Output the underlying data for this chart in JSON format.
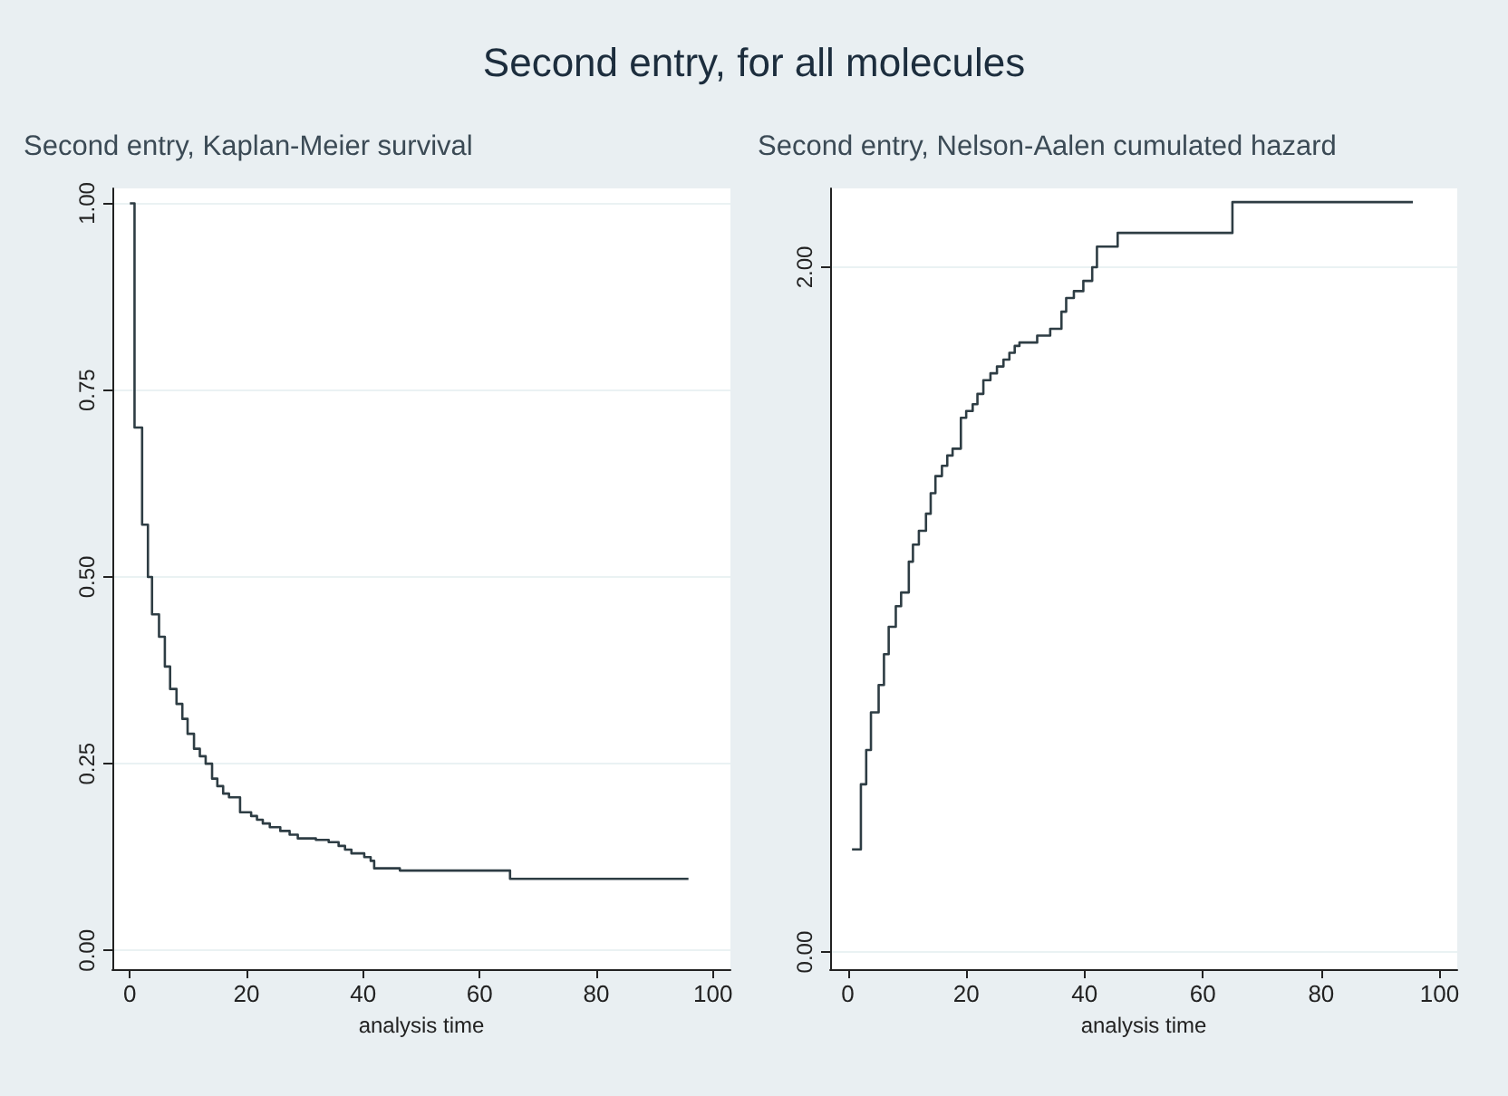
{
  "chart_data": [
    {
      "type": "step",
      "title": "Second entry, for all molecules",
      "subtitle": "Second entry, Kaplan-Meier survival",
      "xlabel": "analysis time",
      "x": [
        0,
        0.8,
        2.1,
        3.1,
        3.8,
        5,
        6,
        6.9,
        8,
        9,
        9.9,
        11,
        12,
        13,
        14.1,
        15,
        16,
        17,
        18.9,
        20.8,
        21.8,
        22.8,
        24,
        25.8,
        27.4,
        28.8,
        31.9,
        34.1,
        35.8,
        36.9,
        38,
        40.2,
        41.3,
        41.9,
        46.3,
        65.2,
        95.8
      ],
      "series": [
        {
          "color": "#2e3d44",
          "values": [
            1.0,
            0.7,
            0.57,
            0.5,
            0.45,
            0.42,
            0.38,
            0.35,
            0.33,
            0.31,
            0.29,
            0.27,
            0.26,
            0.25,
            0.23,
            0.22,
            0.21,
            0.205,
            0.185,
            0.18,
            0.175,
            0.17,
            0.165,
            0.16,
            0.155,
            0.15,
            0.148,
            0.145,
            0.14,
            0.135,
            0.13,
            0.125,
            0.12,
            0.11,
            0.107,
            0.096,
            0.096
          ]
        }
      ],
      "xlim": [
        -3,
        103
      ],
      "xticks": [
        0,
        20,
        40,
        60,
        80,
        100
      ],
      "ylim": [
        -0.025,
        1.02
      ],
      "yticks": [
        {
          "value": 0,
          "label": "0.00"
        },
        {
          "value": 0.25,
          "label": "0.25"
        },
        {
          "value": 0.5,
          "label": "0.50"
        },
        {
          "value": 0.75,
          "label": "0.75"
        },
        {
          "value": 1,
          "label": "1.00"
        }
      ],
      "grid": "y",
      "marker": "none",
      "line_style": "solid"
    },
    {
      "type": "step",
      "subtitle": "Second entry, Nelson-Aalen cumulated hazard",
      "xlabel": "analysis time",
      "x": [
        0.7,
        2.2,
        3.1,
        3.9,
        5.2,
        6.1,
        6.9,
        8.1,
        9,
        10.3,
        11,
        12,
        13.2,
        14,
        14.8,
        15.9,
        16.8,
        17.7,
        19.1,
        20,
        21.1,
        21.9,
        22.9,
        24.1,
        25.2,
        26.3,
        27.3,
        28.2,
        29,
        32,
        34.2,
        36.1,
        36.9,
        38.2,
        39.8,
        41.3,
        42.1,
        45.6,
        65,
        95.5
      ],
      "series": [
        {
          "color": "#2e3d44",
          "values": [
            0.3,
            0.49,
            0.59,
            0.7,
            0.78,
            0.87,
            0.95,
            1.01,
            1.05,
            1.14,
            1.19,
            1.23,
            1.28,
            1.34,
            1.39,
            1.42,
            1.45,
            1.47,
            1.56,
            1.58,
            1.6,
            1.63,
            1.67,
            1.69,
            1.71,
            1.73,
            1.75,
            1.77,
            1.78,
            1.8,
            1.82,
            1.87,
            1.91,
            1.93,
            1.96,
            2.0,
            2.06,
            2.1,
            2.19,
            2.19
          ]
        }
      ],
      "xlim": [
        -3,
        103
      ],
      "xticks": [
        0,
        20,
        40,
        60,
        80,
        100
      ],
      "ylim": [
        -0.05,
        2.23
      ],
      "yticks": [
        {
          "value": 0,
          "label": "0.00"
        },
        {
          "value": 2,
          "label": "2.00"
        }
      ],
      "grid": "y",
      "marker": "none",
      "line_style": "solid"
    }
  ]
}
